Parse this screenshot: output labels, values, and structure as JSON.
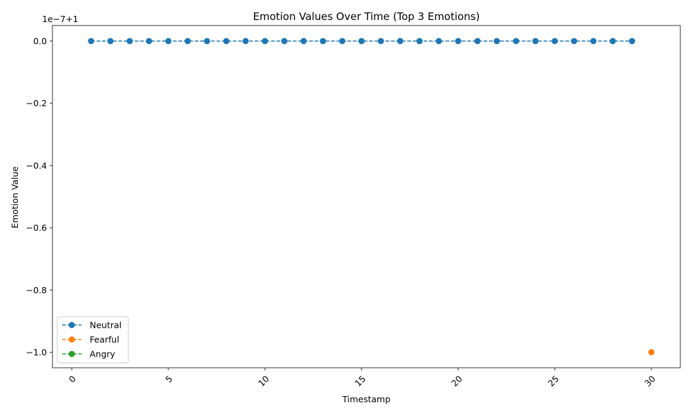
{
  "chart_data": {
    "type": "line",
    "title": "Emotion Values Over Time (Top 3 Emotions)",
    "xlabel": "Timestamp",
    "ylabel": "Emotion Value",
    "y_offset_text": "1e−7+1",
    "xlim": [
      -1,
      31.5
    ],
    "ylim": [
      -1.05,
      0.05
    ],
    "x_ticks": [
      0,
      5,
      10,
      15,
      20,
      25,
      30
    ],
    "x_tick_labels": [
      "0",
      "5",
      "10",
      "15",
      "20",
      "25",
      "30"
    ],
    "y_ticks": [
      0.0,
      -0.2,
      -0.4,
      -0.6,
      -0.8,
      -1.0
    ],
    "y_tick_labels": [
      "0.0",
      "−0.2",
      "−0.4",
      "−0.6",
      "−0.8",
      "−1.0"
    ],
    "grid": false,
    "legend_position": "lower-left",
    "series": [
      {
        "name": "Neutral",
        "color": "#1f77b4",
        "line_style": "dashed",
        "marker": "circle",
        "x": [
          1,
          2,
          3,
          4,
          5,
          6,
          7,
          8,
          9,
          10,
          11,
          12,
          13,
          14,
          15,
          16,
          17,
          18,
          19,
          20,
          21,
          22,
          23,
          24,
          25,
          26,
          27,
          28,
          29
        ],
        "y": [
          0,
          0,
          0,
          0,
          0,
          0,
          0,
          0,
          0,
          0,
          0,
          0,
          0,
          0,
          0,
          0,
          0,
          0,
          0,
          0,
          0,
          0,
          0,
          0,
          0,
          0,
          0,
          0,
          0
        ]
      },
      {
        "name": "Fearful",
        "color": "#ff7f0e",
        "line_style": "dashed",
        "marker": "circle",
        "x": [
          30
        ],
        "y": [
          -1.0
        ]
      },
      {
        "name": "Angry",
        "color": "#2ca02c",
        "line_style": "dashed",
        "marker": "circle",
        "x": [],
        "y": []
      }
    ]
  }
}
